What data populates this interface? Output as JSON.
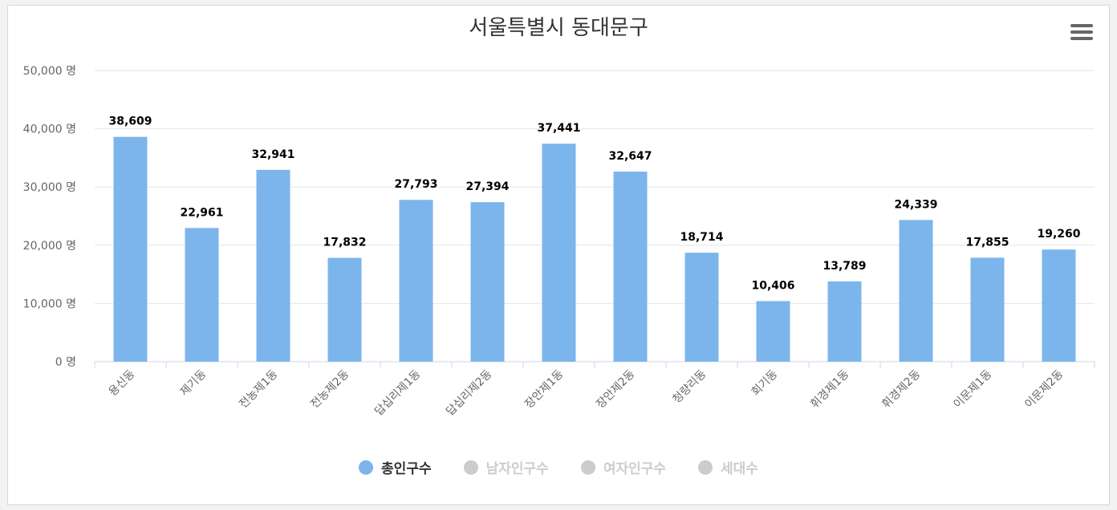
{
  "title": "서울특별시 동대문구",
  "menu_icon": "hamburger-menu-icon",
  "chart_data": {
    "type": "bar",
    "categories": [
      "용신동",
      "제기동",
      "전농제1동",
      "전농제2동",
      "답십리제1동",
      "답십리제2동",
      "장안제1동",
      "장안제2동",
      "청량리동",
      "회기동",
      "휘경제1동",
      "휘경제2동",
      "이문제1동",
      "이문제2동"
    ],
    "series": [
      {
        "name": "총인구수",
        "values": [
          38609,
          22961,
          32941,
          17832,
          27793,
          27394,
          37441,
          32647,
          18714,
          10406,
          13789,
          24339,
          17855,
          19260
        ],
        "color": "#7cb5ec"
      }
    ],
    "data_labels": [
      "38,609",
      "22,961",
      "32,941",
      "17,832",
      "27,793",
      "27,394",
      "37,441",
      "32,647",
      "18,714",
      "10,406",
      "13,789",
      "24,339",
      "17,855",
      "19,260"
    ],
    "y_ticks": [
      0,
      10000,
      20000,
      30000,
      40000,
      50000
    ],
    "y_tick_labels": [
      "0 명",
      "10,000 명",
      "20,000 명",
      "30,000 명",
      "40,000 명",
      "50,000 명"
    ],
    "ylim": [
      0,
      50000
    ],
    "grid": true,
    "legend": [
      {
        "label": "총인구수",
        "active": true,
        "color": "#7cb5ec"
      },
      {
        "label": "남자인구수",
        "active": false,
        "color": "#cccccc"
      },
      {
        "label": "여자인구수",
        "active": false,
        "color": "#cccccc"
      },
      {
        "label": "세대수",
        "active": false,
        "color": "#cccccc"
      }
    ],
    "legend_position": "bottom-center"
  }
}
